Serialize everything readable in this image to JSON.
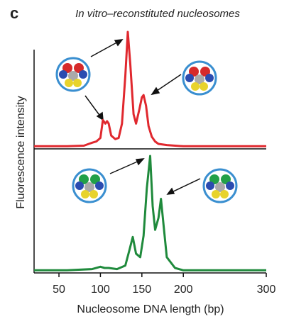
{
  "chart_data": [
    {
      "type": "line",
      "panel_label": "c",
      "title": "In vitro–reconstituted nucleosomes",
      "ylabel": "Fluorescence intensity",
      "x": [
        20,
        40,
        60,
        80,
        90,
        95,
        100,
        103,
        106,
        108,
        110,
        113,
        118,
        122,
        126,
        130,
        133,
        136,
        140,
        143,
        147,
        150,
        152,
        155,
        158,
        162,
        166,
        170,
        180,
        200,
        250,
        300
      ],
      "series": [
        {
          "color": "#e0282e",
          "values": [
            1,
            1,
            1,
            1.5,
            4,
            5,
            8,
            23,
            20,
            22,
            20,
            10,
            7,
            8,
            20,
            60,
            97,
            70,
            28,
            20,
            32,
            42,
            44,
            35,
            18,
            9,
            5,
            3,
            2,
            1,
            1,
            1
          ]
        }
      ],
      "xlim": [
        20,
        300
      ],
      "ylim": [
        0,
        100
      ]
    },
    {
      "type": "line",
      "xlabel": "Nucleosome DNA length (bp)",
      "x": [
        20,
        60,
        90,
        100,
        105,
        110,
        120,
        130,
        135,
        139,
        143,
        148,
        152,
        156,
        160,
        163,
        166,
        170,
        173,
        176,
        180,
        190,
        200,
        250,
        300
      ],
      "series": [
        {
          "color": "#1f8a3c",
          "values": [
            1,
            1,
            2,
            4,
            3,
            3,
            2,
            5,
            18,
            29,
            15,
            12,
            30,
            70,
            97,
            55,
            35,
            45,
            61,
            40,
            12,
            3,
            1,
            1,
            1
          ]
        }
      ],
      "xlim": [
        20,
        300
      ],
      "ylim": [
        0,
        100
      ],
      "xticks": [
        50,
        100,
        150,
        200,
        300
      ]
    }
  ]
}
